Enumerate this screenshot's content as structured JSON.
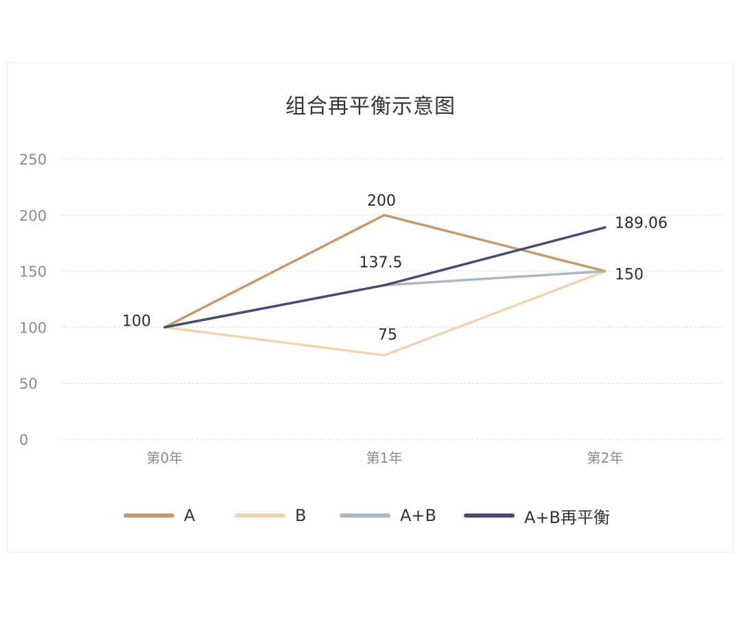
{
  "chart_data": {
    "type": "line",
    "title": "组合再平衡示意图",
    "x": [
      "第0年",
      "第1年",
      "第2年"
    ],
    "ylim": [
      0,
      250
    ],
    "yticks": [
      0,
      50,
      100,
      150,
      200,
      250
    ],
    "grid": true,
    "legend_position": "bottom",
    "series": [
      {
        "name": "A",
        "values": [
          100,
          200,
          150
        ],
        "color": "#C49A6C"
      },
      {
        "name": "B",
        "values": [
          100,
          75,
          150
        ],
        "color": "#EFD5AE"
      },
      {
        "name": "A+B",
        "values": [
          100,
          137.5,
          150
        ],
        "color": "#A9B8C4"
      },
      {
        "name": "A+B再平衡",
        "values": [
          100,
          137.5,
          189.06
        ],
        "color": "#4A4A72"
      }
    ],
    "data_labels": [
      {
        "series": "A",
        "index": 0,
        "text": "100"
      },
      {
        "series": "A",
        "index": 1,
        "text": "200"
      },
      {
        "series": "B",
        "index": 1,
        "text": "75"
      },
      {
        "series": "A+B",
        "index": 1,
        "text": "137.5"
      },
      {
        "series": "A+B",
        "index": 2,
        "text": "150"
      },
      {
        "series": "A+B再平衡",
        "index": 2,
        "text": "189.06"
      }
    ]
  }
}
